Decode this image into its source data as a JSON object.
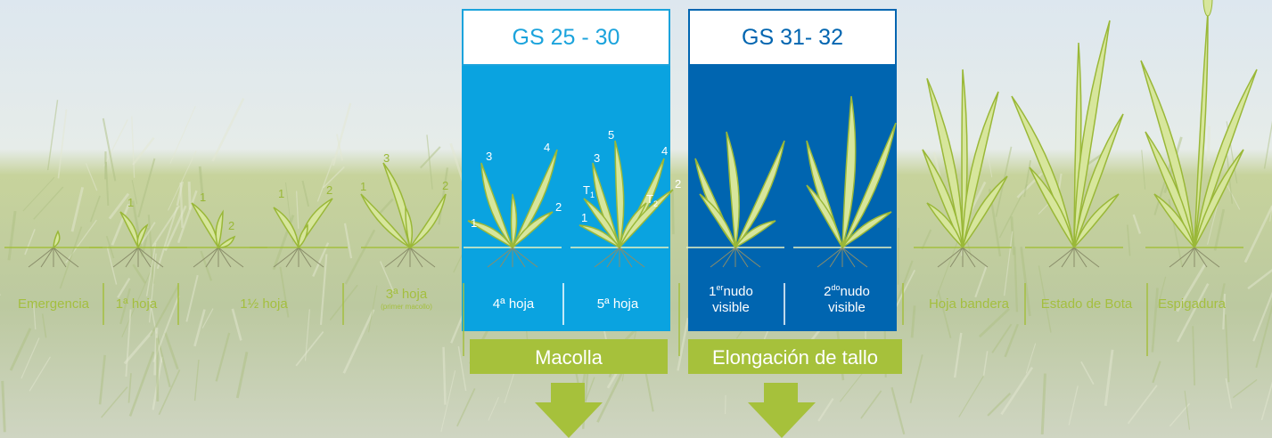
{
  "growth_stages": [
    {
      "code": "GS 25 - 30",
      "phase": "Macolla"
    },
    {
      "code": "GS 31- 32",
      "phase": "Elongación de tallo"
    }
  ],
  "stages": [
    {
      "label": "Emergencia"
    },
    {
      "label": "1ª hoja"
    },
    {
      "label": "1½ hoja"
    },
    {
      "label": "3ª hoja",
      "note": "(primer macollo)"
    },
    {
      "label": "4ª hoja"
    },
    {
      "label": "5ª hoja"
    },
    {
      "number": "1",
      "sup": "er",
      "label": "nudo",
      "line2": "visible"
    },
    {
      "number": "2",
      "sup": "do",
      "label": "nudo",
      "line2": "visible"
    },
    {
      "label": "Hoja bandera"
    },
    {
      "label": "Estado de Bota"
    },
    {
      "label": "Espigadura"
    }
  ],
  "plants": [
    {
      "leaf_labels": []
    },
    {
      "leaf_labels": [
        "1"
      ]
    },
    {
      "leaf_labels": [
        "1",
        "2"
      ]
    },
    {
      "leaf_labels": [
        "1",
        "2"
      ]
    },
    {
      "leaf_labels": [
        "3",
        "1",
        "2"
      ]
    },
    {
      "leaf_labels": [
        "3",
        "4",
        "2",
        "1"
      ]
    },
    {
      "leaf_labels": [
        "5",
        "3",
        "4",
        {
          "text": "T",
          "sub": "1"
        },
        {
          "text": "T",
          "sub": "2"
        },
        "1",
        "2"
      ]
    },
    {
      "leaf_labels": []
    },
    {
      "leaf_labels": []
    },
    {
      "leaf_labels": []
    },
    {
      "leaf_labels": []
    },
    {
      "leaf_labels": []
    }
  ]
}
